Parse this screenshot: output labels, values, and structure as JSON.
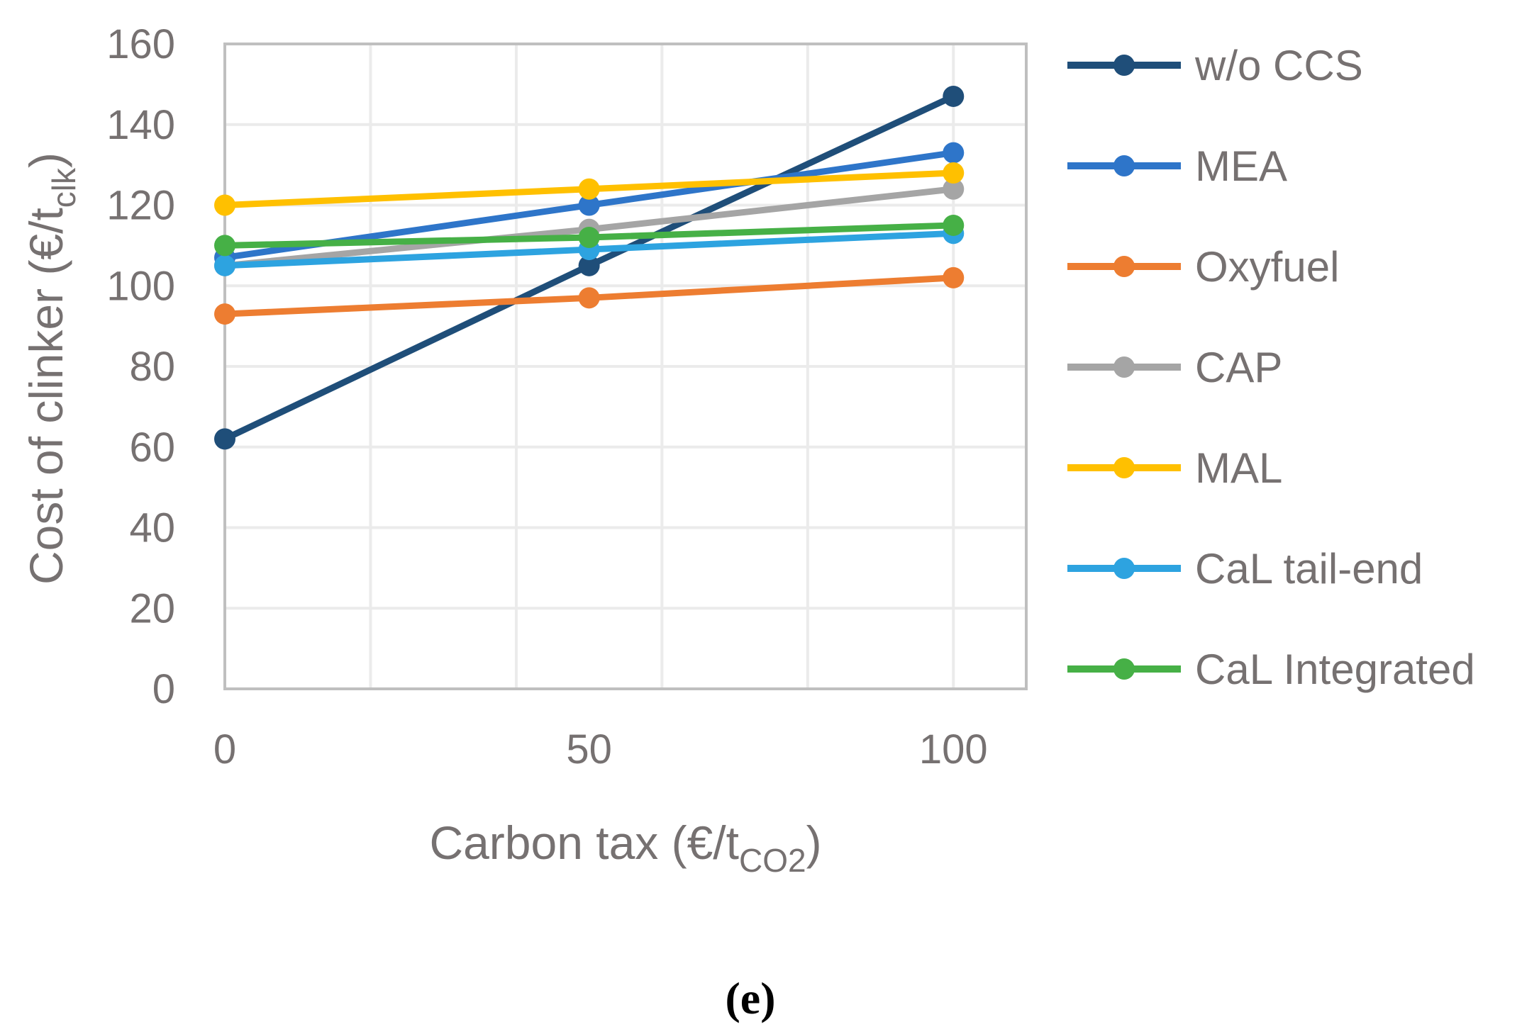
{
  "chart_data": {
    "type": "line",
    "title": "",
    "xlabel": {
      "main": "Carbon tax (€/t",
      "sub": "CO2",
      "close": ")"
    },
    "ylabel": {
      "main": "Cost of clinker (€/t",
      "sub": "clk",
      "close": ")"
    },
    "x": [
      0,
      50,
      100
    ],
    "xlim": [
      0,
      110
    ],
    "ylim": [
      0,
      160
    ],
    "x_ticks": [
      "0",
      "50",
      "100"
    ],
    "y_ticks": [
      "0",
      "20",
      "40",
      "60",
      "80",
      "100",
      "120",
      "140",
      "160"
    ],
    "grid": true,
    "legend_position": "right",
    "series": [
      {
        "name": "w/o CCS",
        "color": "#1F4E79",
        "values": [
          62,
          105,
          147
        ]
      },
      {
        "name": "MEA",
        "color": "#2E75C9",
        "values": [
          107,
          120,
          133
        ]
      },
      {
        "name": "Oxyfuel",
        "color": "#ED7D31",
        "values": [
          93,
          97,
          102
        ]
      },
      {
        "name": "CAP",
        "color": "#A5A5A5",
        "values": [
          105,
          114,
          124
        ]
      },
      {
        "name": "MAL",
        "color": "#FFC000",
        "values": [
          120,
          124,
          128
        ]
      },
      {
        "name": "CaL tail-end",
        "color": "#2DA3E0",
        "values": [
          105,
          109,
          113
        ]
      },
      {
        "name": "CaL Integrated",
        "color": "#46B046",
        "values": [
          110,
          112,
          115
        ]
      }
    ]
  },
  "caption": "(e)"
}
